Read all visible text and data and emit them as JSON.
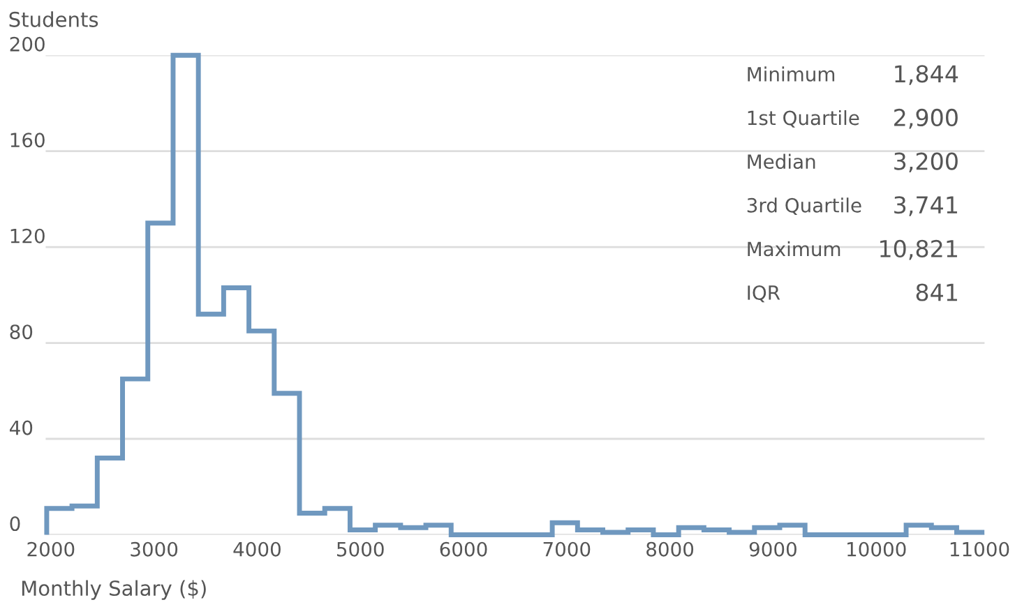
{
  "chart_data": {
    "type": "histogram",
    "ylabel": "Students",
    "xlabel": "Monthly Salary ($)",
    "bins": [
      1960,
      2205,
      2450,
      2695,
      2940,
      3185,
      3430,
      3675,
      3920,
      4165,
      4410,
      4655,
      4900,
      5145,
      5390,
      5635,
      5880,
      6125,
      6370,
      6615,
      6860,
      7105,
      7350,
      7595,
      7840,
      8085,
      8330,
      8575,
      8820,
      9065,
      9310,
      9555,
      9800,
      10045,
      10290,
      10535,
      10780,
      11025
    ],
    "values": [
      11,
      12,
      32,
      65,
      130,
      200,
      92,
      103,
      85,
      59,
      9,
      11,
      2,
      4,
      3,
      4,
      0,
      0,
      0,
      0,
      5,
      2,
      1,
      2,
      0,
      3,
      2,
      1,
      3,
      4,
      0,
      0,
      0,
      0,
      4,
      3,
      1
    ],
    "color": "#6f98bf",
    "xlim": [
      1950,
      11050
    ],
    "xticks": [
      2000,
      3000,
      4000,
      5000,
      6000,
      7000,
      8000,
      9000,
      10000,
      11000
    ],
    "ylim": [
      0,
      200
    ],
    "yticks": [
      0,
      40,
      80,
      120,
      160,
      200
    ],
    "grid": "y",
    "annotations": [
      "Minimum",
      "1,844",
      "1st Quartile",
      "2,900",
      "Median",
      "3,200",
      "3rd Quartile",
      "3,741",
      "Maximum",
      "10,821",
      "IQR",
      "841"
    ]
  }
}
